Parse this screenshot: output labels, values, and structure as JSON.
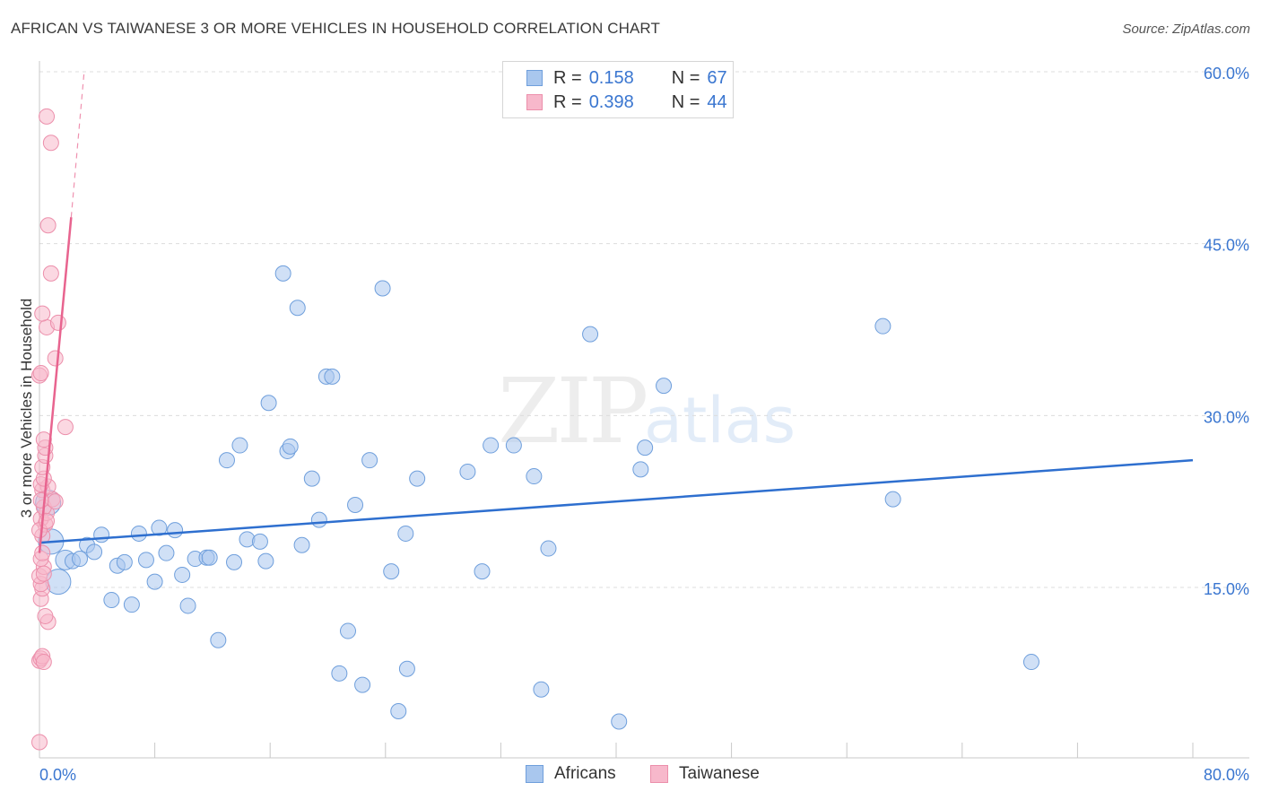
{
  "title": "AFRICAN VS TAIWANESE 3 OR MORE VEHICLES IN HOUSEHOLD CORRELATION CHART",
  "source": "Source: ZipAtlas.com",
  "watermark": {
    "zip": "ZIP",
    "atlas": "atlas"
  },
  "legend": {
    "africans": {
      "r_label": "R =",
      "r_value": "0.158",
      "n_label": "N =",
      "n_value": "67"
    },
    "taiwanese": {
      "r_label": "R =",
      "r_value": "0.398",
      "n_label": "N =",
      "n_value": "44"
    }
  },
  "bottom_legend": {
    "africans": "Africans",
    "taiwanese": "Taiwanese"
  },
  "colors": {
    "africans_fill": "#a9c7ee",
    "africans_stroke": "#6f9fdc",
    "africans_line": "#2e6fcf",
    "taiwanese_fill": "#f7b8cb",
    "taiwanese_stroke": "#ec8fab",
    "taiwanese_line": "#e8648f",
    "grid": "#dcdcdc",
    "tick_text": "#3a76d0"
  },
  "chart_data": {
    "type": "scatter",
    "title": "AFRICAN VS TAIWANESE 3 OR MORE VEHICLES IN HOUSEHOLD CORRELATION CHART",
    "xlabel": "",
    "ylabel": "3 or more Vehicles in Household",
    "xlim": [
      0,
      80
    ],
    "ylim": [
      0,
      62
    ],
    "x_tick_labels": [
      {
        "value": 0,
        "label": "0.0%"
      },
      {
        "value": 80,
        "label": "80.0%"
      }
    ],
    "y_tick_labels": [
      {
        "value": 15,
        "label": "15.0%"
      },
      {
        "value": 30,
        "label": "30.0%"
      },
      {
        "value": 45,
        "label": "45.0%"
      },
      {
        "value": 60,
        "label": "60.0%"
      }
    ],
    "series": [
      {
        "name": "Africans",
        "r": 0.158,
        "n": 67,
        "trend": {
          "x": [
            0,
            80
          ],
          "y": [
            18.9,
            26.1
          ]
        },
        "points": [
          {
            "x": 0.6,
            "y": 22.4,
            "s": "l"
          },
          {
            "x": 0.8,
            "y": 19.0,
            "s": "l"
          },
          {
            "x": 1.3,
            "y": 15.5,
            "s": "l"
          },
          {
            "x": 1.8,
            "y": 17.4,
            "s": "m"
          },
          {
            "x": 2.3,
            "y": 17.3
          },
          {
            "x": 2.8,
            "y": 17.5
          },
          {
            "x": 3.3,
            "y": 18.7
          },
          {
            "x": 3.8,
            "y": 18.1
          },
          {
            "x": 4.3,
            "y": 19.6
          },
          {
            "x": 5.0,
            "y": 13.9
          },
          {
            "x": 5.4,
            "y": 16.9
          },
          {
            "x": 5.9,
            "y": 17.2
          },
          {
            "x": 6.4,
            "y": 13.5
          },
          {
            "x": 6.9,
            "y": 19.7
          },
          {
            "x": 7.4,
            "y": 17.4
          },
          {
            "x": 8.0,
            "y": 15.5
          },
          {
            "x": 8.3,
            "y": 20.2
          },
          {
            "x": 8.8,
            "y": 18.0
          },
          {
            "x": 9.4,
            "y": 20.0
          },
          {
            "x": 9.9,
            "y": 16.1
          },
          {
            "x": 10.3,
            "y": 13.4
          },
          {
            "x": 10.8,
            "y": 17.5
          },
          {
            "x": 11.6,
            "y": 17.6
          },
          {
            "x": 11.8,
            "y": 17.6
          },
          {
            "x": 12.4,
            "y": 10.4
          },
          {
            "x": 13.0,
            "y": 26.1
          },
          {
            "x": 13.5,
            "y": 17.2
          },
          {
            "x": 13.9,
            "y": 27.4
          },
          {
            "x": 14.4,
            "y": 19.2
          },
          {
            "x": 15.3,
            "y": 19.0
          },
          {
            "x": 15.7,
            "y": 17.3
          },
          {
            "x": 15.9,
            "y": 31.1
          },
          {
            "x": 16.9,
            "y": 42.4
          },
          {
            "x": 17.2,
            "y": 26.9
          },
          {
            "x": 17.4,
            "y": 27.3
          },
          {
            "x": 17.9,
            "y": 39.4
          },
          {
            "x": 18.2,
            "y": 18.7
          },
          {
            "x": 18.9,
            "y": 24.5
          },
          {
            "x": 19.4,
            "y": 20.9
          },
          {
            "x": 19.9,
            "y": 33.4
          },
          {
            "x": 20.3,
            "y": 33.4
          },
          {
            "x": 20.8,
            "y": 7.5
          },
          {
            "x": 21.4,
            "y": 11.2
          },
          {
            "x": 21.9,
            "y": 22.2
          },
          {
            "x": 22.4,
            "y": 6.5
          },
          {
            "x": 22.9,
            "y": 26.1
          },
          {
            "x": 23.8,
            "y": 41.1
          },
          {
            "x": 24.4,
            "y": 16.4
          },
          {
            "x": 24.9,
            "y": 4.2
          },
          {
            "x": 25.4,
            "y": 19.7
          },
          {
            "x": 25.5,
            "y": 7.9
          },
          {
            "x": 26.2,
            "y": 24.5
          },
          {
            "x": 29.7,
            "y": 25.1
          },
          {
            "x": 30.7,
            "y": 16.4
          },
          {
            "x": 31.3,
            "y": 27.4
          },
          {
            "x": 32.9,
            "y": 27.4
          },
          {
            "x": 34.3,
            "y": 24.7
          },
          {
            "x": 34.8,
            "y": 6.1
          },
          {
            "x": 35.3,
            "y": 18.4
          },
          {
            "x": 38.2,
            "y": 37.1
          },
          {
            "x": 40.2,
            "y": 3.3
          },
          {
            "x": 41.7,
            "y": 25.3
          },
          {
            "x": 42.0,
            "y": 27.2
          },
          {
            "x": 43.3,
            "y": 32.6
          },
          {
            "x": 58.5,
            "y": 37.8
          },
          {
            "x": 59.2,
            "y": 22.7
          },
          {
            "x": 68.8,
            "y": 8.5
          }
        ]
      },
      {
        "name": "Taiwanese",
        "r": 0.398,
        "n": 44,
        "trend": {
          "x": [
            0,
            2.2
          ],
          "y": [
            18.0,
            47.3
          ]
        },
        "trend_extension": {
          "x": [
            2.2,
            3.1
          ],
          "y": [
            47.3,
            60.0
          ]
        },
        "points": [
          {
            "x": 0.0,
            "y": 1.5
          },
          {
            "x": 0.0,
            "y": 8.6
          },
          {
            "x": 0.1,
            "y": 8.8
          },
          {
            "x": 0.2,
            "y": 9.0
          },
          {
            "x": 0.3,
            "y": 8.5
          },
          {
            "x": 0.6,
            "y": 12.0
          },
          {
            "x": 0.4,
            "y": 12.5
          },
          {
            "x": 0.1,
            "y": 14.0
          },
          {
            "x": 0.2,
            "y": 14.9
          },
          {
            "x": 0.1,
            "y": 15.3
          },
          {
            "x": 0.0,
            "y": 16.0
          },
          {
            "x": 0.3,
            "y": 16.8
          },
          {
            "x": 0.1,
            "y": 17.5
          },
          {
            "x": 0.2,
            "y": 18.0
          },
          {
            "x": 0.2,
            "y": 19.5
          },
          {
            "x": 0.4,
            "y": 20.5
          },
          {
            "x": 0.1,
            "y": 21.0
          },
          {
            "x": 0.5,
            "y": 21.5
          },
          {
            "x": 0.3,
            "y": 22.0
          },
          {
            "x": 0.9,
            "y": 22.7
          },
          {
            "x": 1.1,
            "y": 22.5
          },
          {
            "x": 0.2,
            "y": 23.5
          },
          {
            "x": 0.6,
            "y": 23.8
          },
          {
            "x": 0.1,
            "y": 24.0
          },
          {
            "x": 0.3,
            "y": 24.5
          },
          {
            "x": 0.2,
            "y": 25.5
          },
          {
            "x": 0.4,
            "y": 26.5
          },
          {
            "x": 0.4,
            "y": 27.2
          },
          {
            "x": 0.3,
            "y": 27.9
          },
          {
            "x": 1.8,
            "y": 29.0
          },
          {
            "x": 0.0,
            "y": 33.5
          },
          {
            "x": 0.1,
            "y": 33.7
          },
          {
            "x": 1.1,
            "y": 35.0
          },
          {
            "x": 0.5,
            "y": 37.7
          },
          {
            "x": 1.3,
            "y": 38.1
          },
          {
            "x": 0.2,
            "y": 38.9
          },
          {
            "x": 0.8,
            "y": 42.4
          },
          {
            "x": 0.6,
            "y": 46.6
          },
          {
            "x": 0.8,
            "y": 53.8
          },
          {
            "x": 0.5,
            "y": 56.1
          },
          {
            "x": 0.0,
            "y": 20.0
          },
          {
            "x": 0.1,
            "y": 22.6
          },
          {
            "x": 0.5,
            "y": 20.8
          },
          {
            "x": 0.3,
            "y": 16.2
          }
        ]
      }
    ]
  }
}
